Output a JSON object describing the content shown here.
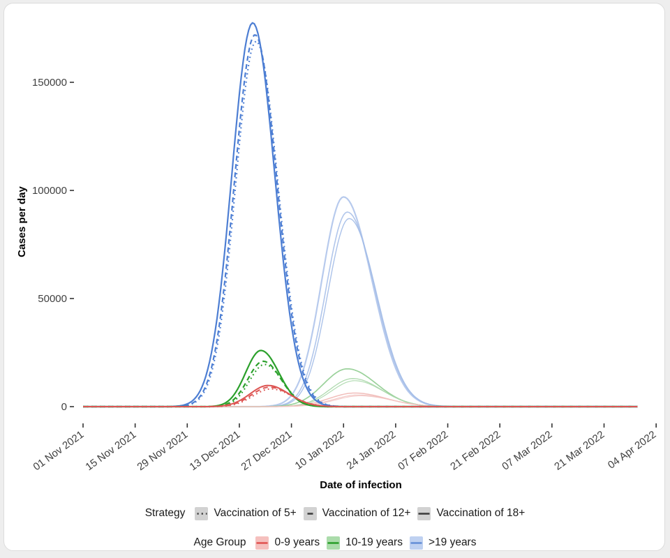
{
  "chart_data": {
    "type": "line",
    "xlabel": "Date of infection",
    "ylabel": "Cases per day",
    "x_ticks": [
      "01 Nov 2021",
      "15 Nov 2021",
      "29 Nov 2021",
      "13 Dec 2021",
      "27 Dec 2021",
      "10 Jan 2022",
      "24 Jan 2022",
      "07 Feb 2022",
      "21 Feb 2022",
      "07 Mar 2022",
      "21 Mar 2022",
      "04 Apr 2022"
    ],
    "y_ticks": [
      "0",
      "50000",
      "100000",
      "150000"
    ],
    "ylim": [
      0,
      180000
    ],
    "x_start_date": "2021-11-01",
    "x_end_date": "2022-03-31",
    "grid": false,
    "legend_position": "bottom",
    "series": [
      {
        "name": "wave2->19y-vax18",
        "age_group": ">19 years",
        "strategy": "Vaccination of 18+",
        "wave": "second",
        "color": "#b3c7ec",
        "dash": "solid",
        "width": 2.2,
        "opacity": 0.95,
        "peak_date": "2022-01-10",
        "peak_day": 70.0,
        "peak_cases": 97000,
        "sigma_left_days": 5.8,
        "sigma_right_days": 7.6
      },
      {
        "name": "wave2->19y-vax12",
        "age_group": ">19 years",
        "strategy": "Vaccination of 12+",
        "wave": "second",
        "color": "#a9c0e9",
        "dash": "solid",
        "width": 1.6,
        "opacity": 0.9,
        "peak_date": "2022-01-11",
        "peak_day": 71.0,
        "peak_cases": 90000,
        "sigma_left_days": 5.7,
        "sigma_right_days": 7.4
      },
      {
        "name": "wave2->19y-vax5",
        "age_group": ">19 years",
        "strategy": "Vaccination of 5+",
        "wave": "second",
        "color": "#a2bbe7",
        "dash": "solid",
        "width": 1.4,
        "opacity": 0.9,
        "peak_date": "2022-01-11",
        "peak_day": 71.5,
        "peak_cases": 87000,
        "sigma_left_days": 5.7,
        "sigma_right_days": 7.3
      },
      {
        "name": "wave2-10-19y-vax18",
        "age_group": "10-19 years",
        "strategy": "Vaccination of 18+",
        "wave": "second",
        "color": "#8fcc8f",
        "dash": "solid",
        "width": 1.7,
        "opacity": 0.9,
        "peak_date": "2022-01-11",
        "peak_day": 71.0,
        "peak_cases": 17500,
        "sigma_left_days": 6.3,
        "sigma_right_days": 7.8
      },
      {
        "name": "wave2-10-19y-vax12",
        "age_group": "10-19 years",
        "strategy": "Vaccination of 12+",
        "wave": "second",
        "color": "#a5d6a5",
        "dash": "solid",
        "width": 1.3,
        "opacity": 0.9,
        "peak_date": "2022-01-12",
        "peak_day": 72.5,
        "peak_cases": 13000,
        "sigma_left_days": 6.2,
        "sigma_right_days": 7.6
      },
      {
        "name": "wave2-10-19y-vax5",
        "age_group": "10-19 years",
        "strategy": "Vaccination of 5+",
        "wave": "second",
        "color": "#abd8ab",
        "dash": "solid",
        "width": 1.2,
        "opacity": 0.9,
        "peak_date": "2022-01-13",
        "peak_day": 73.0,
        "peak_cases": 12000,
        "sigma_left_days": 6.2,
        "sigma_right_days": 7.6
      },
      {
        "name": "wave2-0-9y-vax18",
        "age_group": "0-9 years",
        "strategy": "Vaccination of 18+",
        "wave": "second",
        "color": "#efb6b3",
        "dash": "solid",
        "width": 1.5,
        "opacity": 0.9,
        "peak_date": "2022-01-13",
        "peak_day": 73.0,
        "peak_cases": 6300,
        "sigma_left_days": 6.8,
        "sigma_right_days": 8.4
      },
      {
        "name": "wave2-0-9y-vax12",
        "age_group": "0-9 years",
        "strategy": "Vaccination of 12+",
        "wave": "second",
        "color": "#f2c1bf",
        "dash": "solid",
        "width": 1.2,
        "opacity": 0.9,
        "peak_date": "2022-01-14",
        "peak_day": 74.0,
        "peak_cases": 5400,
        "sigma_left_days": 6.8,
        "sigma_right_days": 8.4
      },
      {
        "name": "wave2-0-9y-vax5",
        "age_group": "0-9 years",
        "strategy": "Vaccination of 5+",
        "wave": "second",
        "color": "#f2c5c3",
        "dash": "solid",
        "width": 1.1,
        "opacity": 0.9,
        "peak_date": "2022-01-14",
        "peak_day": 74.5,
        "peak_cases": 5000,
        "sigma_left_days": 6.8,
        "sigma_right_days": 8.4
      },
      {
        "name": "wave1->19y-vax18",
        "age_group": ">19 years",
        "strategy": "Vaccination of 18+",
        "wave": "first",
        "color": "#4d7ed3",
        "dash": "solid",
        "width": 2.2,
        "opacity": 1,
        "peak_date": "2021-12-17",
        "peak_day": 45.6,
        "peak_cases": 177500,
        "sigma_left_days": 5.6,
        "sigma_right_days": 5.9
      },
      {
        "name": "wave1->19y-vax12",
        "age_group": ">19 years",
        "strategy": "Vaccination of 12+",
        "wave": "first",
        "color": "#4d7ed3",
        "dash": "dashed",
        "width": 2.2,
        "opacity": 1,
        "peak_date": "2021-12-17",
        "peak_day": 46.2,
        "peak_cases": 172000,
        "sigma_left_days": 5.5,
        "sigma_right_days": 5.9
      },
      {
        "name": "wave1->19y-vax5",
        "age_group": ">19 years",
        "strategy": "Vaccination of 5+",
        "wave": "first",
        "color": "#4d7ed3",
        "dash": "dotted",
        "width": 2.2,
        "opacity": 1,
        "peak_date": "2021-12-17",
        "peak_day": 46.5,
        "peak_cases": 169000,
        "sigma_left_days": 5.5,
        "sigma_right_days": 5.9
      },
      {
        "name": "wave1-10-19y-vax18",
        "age_group": "10-19 years",
        "strategy": "Vaccination of 18+",
        "wave": "first",
        "color": "#2ba02b",
        "dash": "solid",
        "width": 2.2,
        "opacity": 1,
        "peak_date": "2021-12-19",
        "peak_day": 47.8,
        "peak_cases": 26000,
        "sigma_left_days": 4.1,
        "sigma_right_days": 4.8
      },
      {
        "name": "wave1-10-19y-vax12",
        "age_group": "10-19 years",
        "strategy": "Vaccination of 12+",
        "wave": "first",
        "color": "#2ba02b",
        "dash": "dashed",
        "width": 2.2,
        "opacity": 1,
        "peak_date": "2021-12-19",
        "peak_day": 48.4,
        "peak_cases": 21000,
        "sigma_left_days": 4.1,
        "sigma_right_days": 4.8
      },
      {
        "name": "wave1-10-19y-vax5",
        "age_group": "10-19 years",
        "strategy": "Vaccination of 5+",
        "wave": "first",
        "color": "#2ba02b",
        "dash": "dotted",
        "width": 2.2,
        "opacity": 1,
        "peak_date": "2021-12-20",
        "peak_day": 48.8,
        "peak_cases": 19500,
        "sigma_left_days": 4.1,
        "sigma_right_days": 4.8
      },
      {
        "name": "wave1-0-9y-vax18",
        "age_group": "0-9 years",
        "strategy": "Vaccination of 18+",
        "wave": "first",
        "color": "#dd5452",
        "dash": "solid",
        "width": 2.0,
        "opacity": 1,
        "peak_date": "2021-12-21",
        "peak_day": 49.7,
        "peak_cases": 9800,
        "sigma_left_days": 4.8,
        "sigma_right_days": 5.6
      },
      {
        "name": "wave1-0-9y-vax12",
        "age_group": "0-9 years",
        "strategy": "Vaccination of 12+",
        "wave": "first",
        "color": "#dd5452",
        "dash": "dashed",
        "width": 2.0,
        "opacity": 1,
        "peak_date": "2021-12-21",
        "peak_day": 50.1,
        "peak_cases": 9000,
        "sigma_left_days": 4.8,
        "sigma_right_days": 5.6
      },
      {
        "name": "wave1-0-9y-vax5",
        "age_group": "0-9 years",
        "strategy": "Vaccination of 5+",
        "wave": "first",
        "color": "#dd5452",
        "dash": "dotted",
        "width": 2.0,
        "opacity": 1,
        "peak_date": "2021-12-22",
        "peak_day": 50.5,
        "peak_cases": 8200,
        "sigma_left_days": 4.8,
        "sigma_right_days": 5.6
      }
    ]
  },
  "legend": {
    "strategy": {
      "label": "Strategy",
      "key_bg": "#d2d2d2",
      "line_color": "#3f3f3f",
      "items": [
        {
          "label": "Vaccination of 5+",
          "dash": "dotted"
        },
        {
          "label": "Vaccination of 12+",
          "dash": "dashed"
        },
        {
          "label": "Vaccination of 18+",
          "dash": "solid"
        }
      ]
    },
    "age_group": {
      "label": "Age Group",
      "items": [
        {
          "label": "0-9 years",
          "line_color": "#e15552",
          "key_bg": "#f5c0be"
        },
        {
          "label": "10-19 years",
          "line_color": "#2ca02c",
          "key_bg": "#abdcab"
        },
        {
          "label": ">19 years",
          "line_color": "#6690d8",
          "key_bg": "#bfd1f1"
        }
      ]
    }
  },
  "colors": {
    "page_bg": "#eeeeee",
    "card_bg": "#ffffff",
    "card_border": "#dcdcdc",
    "tick_text": "#404040"
  }
}
